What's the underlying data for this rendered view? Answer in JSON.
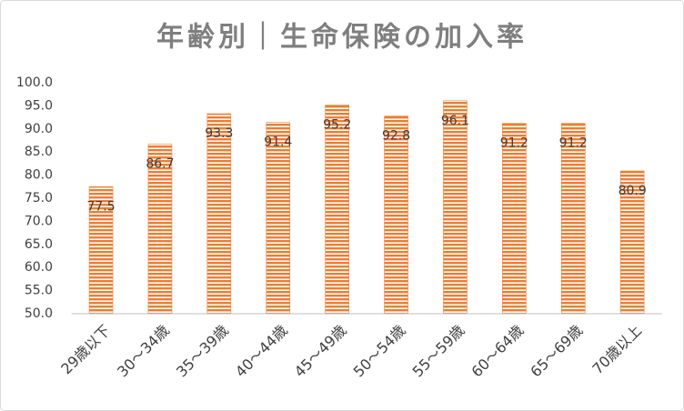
{
  "chart_data": {
    "type": "bar",
    "title": "年齢別｜生命保険の加入率",
    "categories": [
      "29歳以下",
      "30～34歳",
      "35～39歳",
      "40～44歳",
      "45～49歳",
      "50～54歳",
      "55～59歳",
      "60～64歳",
      "65～69歳",
      "70歳以上"
    ],
    "values": [
      77.5,
      86.7,
      93.3,
      91.4,
      95.2,
      92.8,
      96.1,
      91.2,
      91.2,
      80.9
    ],
    "color": "#ed7d31",
    "ylim": [
      50,
      100
    ],
    "yticks": [
      {
        "value": 50,
        "label": "50.0"
      },
      {
        "value": 55,
        "label": "55.0"
      },
      {
        "value": 60,
        "label": "60.0"
      },
      {
        "value": 65,
        "label": "65.0"
      },
      {
        "value": 70,
        "label": "70.0"
      },
      {
        "value": 75,
        "label": "75.0"
      },
      {
        "value": 80,
        "label": "80.0"
      },
      {
        "value": 85,
        "label": "85.0"
      },
      {
        "value": 90,
        "label": "90.0"
      },
      {
        "value": 95,
        "label": "95.0"
      },
      {
        "value": 100,
        "label": "100.0"
      }
    ],
    "grid": false
  }
}
